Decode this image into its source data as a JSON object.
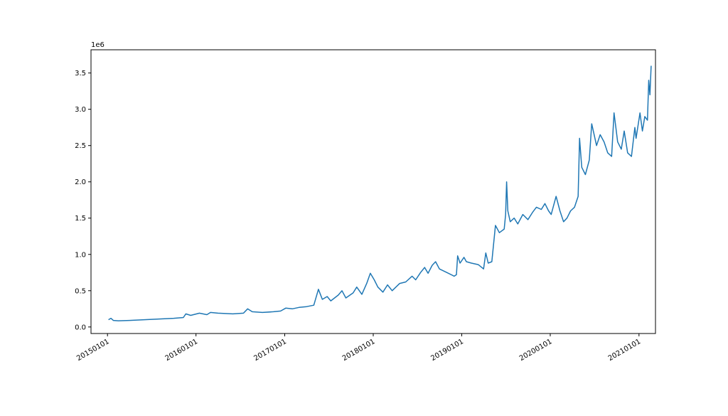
{
  "chart_data": {
    "type": "line",
    "title": "",
    "xlabel": "",
    "ylabel": "",
    "y_offset_label": "1e6",
    "y_multiplier": 1000000,
    "xlim": [
      "2014-10-25",
      "2021-03-10"
    ],
    "ylim": [
      -0.09,
      3.82
    ],
    "grid": false,
    "x_ticks": [
      {
        "date": "2015-01-01",
        "label": "20150101"
      },
      {
        "date": "2016-01-01",
        "label": "20160101"
      },
      {
        "date": "2017-01-01",
        "label": "20170101"
      },
      {
        "date": "2018-01-01",
        "label": "20180101"
      },
      {
        "date": "2019-01-01",
        "label": "20190101"
      },
      {
        "date": "2020-01-01",
        "label": "20200101"
      },
      {
        "date": "2021-01-01",
        "label": "20210101"
      }
    ],
    "y_ticks": [
      {
        "value": 0.0,
        "label": "0.0"
      },
      {
        "value": 0.5,
        "label": "0.5"
      },
      {
        "value": 1.0,
        "label": "1.0"
      },
      {
        "value": 1.5,
        "label": "1.5"
      },
      {
        "value": 2.0,
        "label": "2.0"
      },
      {
        "value": 2.5,
        "label": "2.5"
      },
      {
        "value": 3.0,
        "label": "3.0"
      },
      {
        "value": 3.5,
        "label": "3.5"
      }
    ],
    "series": [
      {
        "color": "#1f77b4",
        "points": [
          [
            "2015-01-05",
            0.1
          ],
          [
            "2015-01-15",
            0.12
          ],
          [
            "2015-01-25",
            0.09
          ],
          [
            "2015-02-15",
            0.085
          ],
          [
            "2015-04-01",
            0.09
          ],
          [
            "2015-06-01",
            0.1
          ],
          [
            "2015-08-01",
            0.11
          ],
          [
            "2015-10-01",
            0.12
          ],
          [
            "2015-11-10",
            0.13
          ],
          [
            "2015-11-20",
            0.18
          ],
          [
            "2015-12-10",
            0.16
          ],
          [
            "2016-01-15",
            0.19
          ],
          [
            "2016-02-15",
            0.17
          ],
          [
            "2016-03-01",
            0.2
          ],
          [
            "2016-04-01",
            0.19
          ],
          [
            "2016-06-01",
            0.18
          ],
          [
            "2016-07-15",
            0.19
          ],
          [
            "2016-08-01",
            0.25
          ],
          [
            "2016-08-20",
            0.21
          ],
          [
            "2016-10-01",
            0.2
          ],
          [
            "2016-11-15",
            0.21
          ],
          [
            "2016-12-15",
            0.22
          ],
          [
            "2017-01-05",
            0.26
          ],
          [
            "2017-02-01",
            0.25
          ],
          [
            "2017-03-01",
            0.27
          ],
          [
            "2017-04-01",
            0.28
          ],
          [
            "2017-05-01",
            0.3
          ],
          [
            "2017-05-20",
            0.52
          ],
          [
            "2017-06-05",
            0.38
          ],
          [
            "2017-06-25",
            0.42
          ],
          [
            "2017-07-10",
            0.36
          ],
          [
            "2017-08-10",
            0.44
          ],
          [
            "2017-08-25",
            0.5
          ],
          [
            "2017-09-10",
            0.4
          ],
          [
            "2017-10-10",
            0.47
          ],
          [
            "2017-10-25",
            0.55
          ],
          [
            "2017-11-15",
            0.45
          ],
          [
            "2017-12-05",
            0.6
          ],
          [
            "2017-12-20",
            0.74
          ],
          [
            "2018-01-05",
            0.65
          ],
          [
            "2018-01-20",
            0.55
          ],
          [
            "2018-02-10",
            0.48
          ],
          [
            "2018-03-01",
            0.58
          ],
          [
            "2018-03-20",
            0.5
          ],
          [
            "2018-04-20",
            0.6
          ],
          [
            "2018-05-15",
            0.62
          ],
          [
            "2018-06-10",
            0.7
          ],
          [
            "2018-06-25",
            0.65
          ],
          [
            "2018-07-15",
            0.75
          ],
          [
            "2018-08-01",
            0.82
          ],
          [
            "2018-08-15",
            0.74
          ],
          [
            "2018-09-01",
            0.85
          ],
          [
            "2018-09-15",
            0.9
          ],
          [
            "2018-10-01",
            0.8
          ],
          [
            "2018-11-01",
            0.75
          ],
          [
            "2018-12-01",
            0.7
          ],
          [
            "2018-12-10",
            0.72
          ],
          [
            "2018-12-15",
            0.98
          ],
          [
            "2018-12-25",
            0.88
          ],
          [
            "2019-01-10",
            0.96
          ],
          [
            "2019-01-20",
            0.9
          ],
          [
            "2019-02-10",
            0.88
          ],
          [
            "2019-03-10",
            0.86
          ],
          [
            "2019-04-01",
            0.8
          ],
          [
            "2019-04-10",
            1.02
          ],
          [
            "2019-04-20",
            0.88
          ],
          [
            "2019-05-05",
            0.9
          ],
          [
            "2019-05-20",
            1.4
          ],
          [
            "2019-06-05",
            1.3
          ],
          [
            "2019-06-25",
            1.35
          ],
          [
            "2019-07-01",
            1.55
          ],
          [
            "2019-07-05",
            2.0
          ],
          [
            "2019-07-10",
            1.6
          ],
          [
            "2019-07-20",
            1.45
          ],
          [
            "2019-08-05",
            1.5
          ],
          [
            "2019-08-20",
            1.42
          ],
          [
            "2019-09-10",
            1.55
          ],
          [
            "2019-10-01",
            1.48
          ],
          [
            "2019-10-20",
            1.58
          ],
          [
            "2019-11-05",
            1.65
          ],
          [
            "2019-11-25",
            1.62
          ],
          [
            "2019-12-10",
            1.7
          ],
          [
            "2019-12-25",
            1.6
          ],
          [
            "2020-01-05",
            1.55
          ],
          [
            "2020-01-25",
            1.8
          ],
          [
            "2020-02-10",
            1.6
          ],
          [
            "2020-02-25",
            1.45
          ],
          [
            "2020-03-10",
            1.5
          ],
          [
            "2020-03-25",
            1.6
          ],
          [
            "2020-04-10",
            1.65
          ],
          [
            "2020-04-25",
            1.8
          ],
          [
            "2020-05-01",
            2.6
          ],
          [
            "2020-05-10",
            2.2
          ],
          [
            "2020-05-25",
            2.1
          ],
          [
            "2020-06-10",
            2.3
          ],
          [
            "2020-06-20",
            2.8
          ],
          [
            "2020-07-10",
            2.5
          ],
          [
            "2020-07-25",
            2.65
          ],
          [
            "2020-08-10",
            2.55
          ],
          [
            "2020-08-25",
            2.4
          ],
          [
            "2020-09-10",
            2.35
          ],
          [
            "2020-09-20",
            2.95
          ],
          [
            "2020-10-05",
            2.55
          ],
          [
            "2020-10-20",
            2.45
          ],
          [
            "2020-11-01",
            2.7
          ],
          [
            "2020-11-15",
            2.4
          ],
          [
            "2020-12-01",
            2.35
          ],
          [
            "2020-12-15",
            2.75
          ],
          [
            "2020-12-20",
            2.6
          ],
          [
            "2021-01-05",
            2.95
          ],
          [
            "2021-01-15",
            2.7
          ],
          [
            "2021-01-25",
            2.9
          ],
          [
            "2021-02-05",
            2.85
          ],
          [
            "2021-02-10",
            3.4
          ],
          [
            "2021-02-15",
            3.2
          ],
          [
            "2021-02-20",
            3.6
          ]
        ]
      }
    ]
  }
}
